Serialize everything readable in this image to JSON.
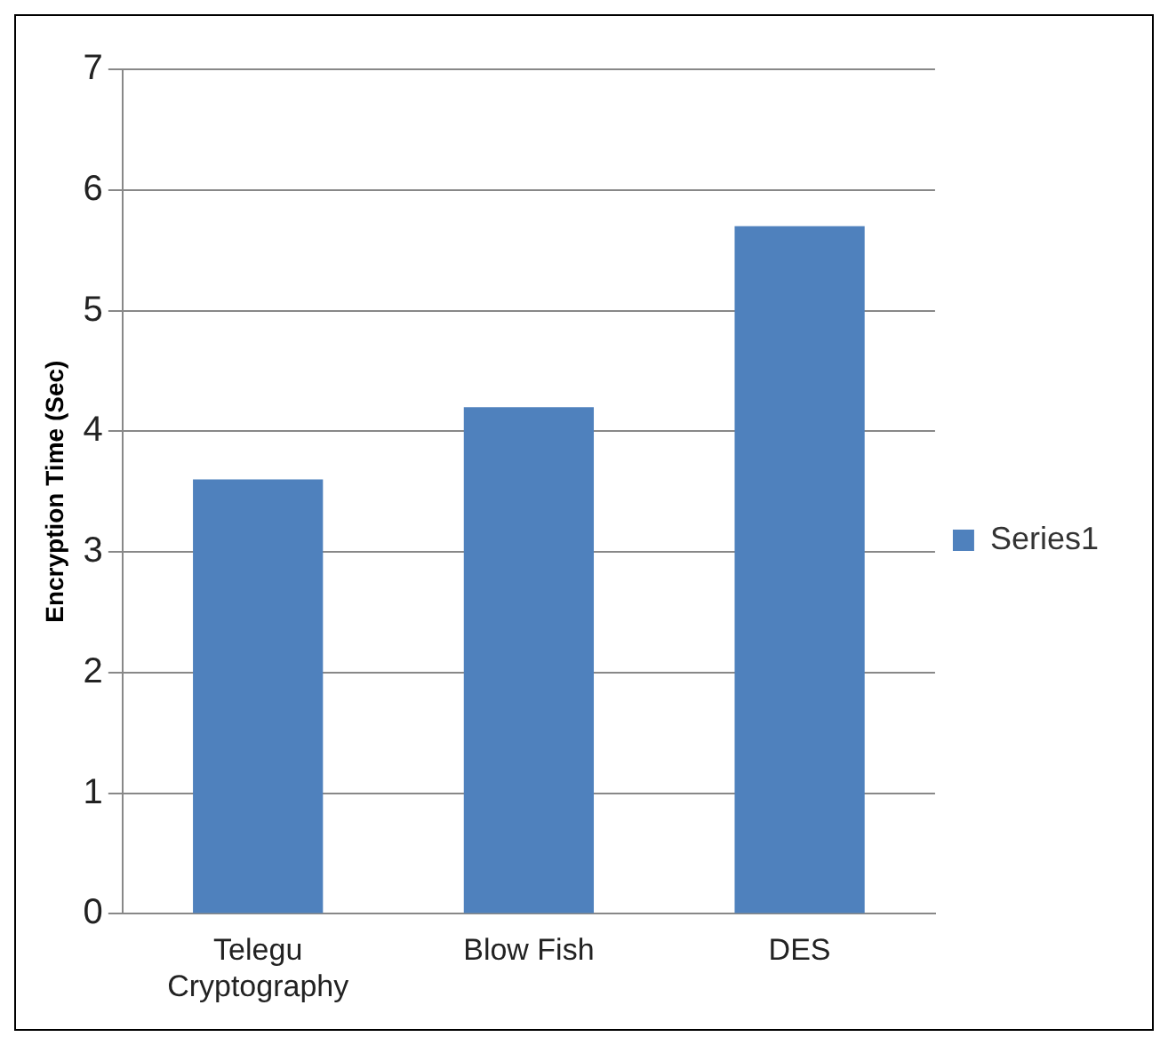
{
  "chart_data": {
    "type": "bar",
    "ylabel": "Encryption Time (Sec)",
    "categories": [
      "Telegu Cryptography",
      "Blow Fish",
      "DES"
    ],
    "series": [
      {
        "name": "Series1",
        "color": "#4f81bd",
        "values": [
          3.6,
          4.2,
          5.7
        ]
      }
    ],
    "ylim": [
      0,
      7
    ],
    "yticks": [
      0,
      1,
      2,
      3,
      4,
      5,
      6,
      7
    ],
    "grid": "y",
    "legend": "right"
  }
}
